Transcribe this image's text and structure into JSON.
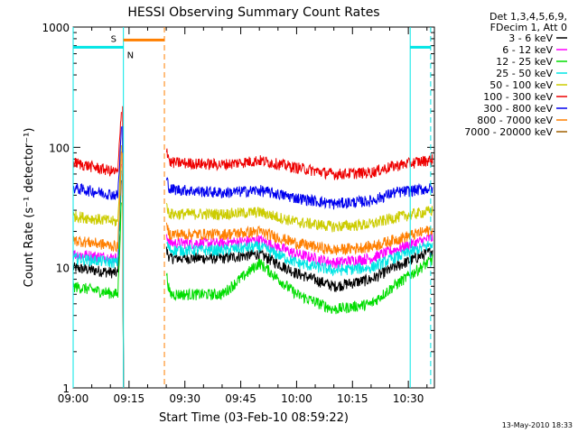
{
  "chart_data": {
    "type": "line",
    "title": "HESSI Observing Summary Count Rates",
    "xlabel": "Start Time (03-Feb-10 08:59:22)",
    "ylabel": "Count Rate (s⁻¹ detector⁻¹)",
    "y_scale": "log",
    "ylim": [
      1,
      1000
    ],
    "xlim": [
      "09:00",
      "10:37"
    ],
    "x_ticks": [
      "09:00",
      "09:15",
      "09:30",
      "09:45",
      "10:00",
      "10:15",
      "10:30"
    ],
    "y_ticks": [
      "1",
      "10",
      "100",
      "1000"
    ],
    "legend_header": [
      "Det 1,3,4,5,6,9,",
      "FDecim 1, Att 0"
    ],
    "legend_position": "right",
    "x_units": "minutes since 09:00",
    "time_x": [
      0,
      12,
      13,
      24,
      25,
      26,
      40,
      50,
      60,
      70,
      80,
      86,
      97
    ],
    "data_gaps": [
      [
        13.5,
        24.5
      ]
    ],
    "series": [
      {
        "name": "3 - 6 keV",
        "color": "#000000",
        "values": [
          10,
          9,
          60,
          null,
          14,
          12,
          12,
          13,
          9,
          7,
          8,
          10,
          14
        ]
      },
      {
        "name": "6 - 12 keV",
        "color": "#ff00ff",
        "values": [
          13,
          12,
          80,
          null,
          19,
          16,
          16,
          17,
          13,
          11,
          12,
          14,
          18
        ]
      },
      {
        "name": "12 - 25 keV",
        "color": "#00dd00",
        "values": [
          7,
          6,
          40,
          null,
          9,
          6,
          6,
          11,
          6,
          4.5,
          5,
          7,
          12
        ]
      },
      {
        "name": "25 - 50 keV",
        "color": "#00e5e5",
        "values": [
          12,
          11,
          70,
          null,
          16,
          14,
          14,
          15,
          11,
          9.5,
          10,
          12,
          16
        ]
      },
      {
        "name": "50 - 100 keV",
        "color": "#cccc00",
        "values": [
          27,
          24,
          120,
          null,
          32,
          28,
          28,
          29,
          24,
          22,
          23,
          26,
          30
        ]
      },
      {
        "name": "100 - 300 keV",
        "color": "#ee0000",
        "values": [
          75,
          62,
          220,
          null,
          100,
          75,
          72,
          78,
          68,
          60,
          62,
          70,
          80
        ]
      },
      {
        "name": "300 - 800 keV",
        "color": "#0000ee",
        "values": [
          46,
          40,
          150,
          null,
          55,
          45,
          42,
          44,
          38,
          34,
          36,
          42,
          46
        ]
      },
      {
        "name": "800 - 7000 keV",
        "color": "#ff7f00",
        "values": [
          17,
          15,
          90,
          null,
          22,
          19,
          19,
          20,
          16,
          14,
          15,
          17,
          21
        ]
      },
      {
        "name": "7000 - 20000 keV",
        "color": "#a06000",
        "values": []
      }
    ],
    "annotations": [
      {
        "label": "S",
        "color": "#ff7f00",
        "x_start": 13.5,
        "x_end": 24.5,
        "y": 780,
        "line": "dashed-ends"
      },
      {
        "label": "N",
        "color": "#00e5e5",
        "segments": [
          [
            0,
            13.5
          ],
          [
            90.5,
            96
          ]
        ],
        "y": 680
      }
    ],
    "vertical_markers": [
      {
        "x": 13.5,
        "color": "#00e5e5",
        "style": "solid"
      },
      {
        "x": 24.5,
        "color": "#ff7f00",
        "style": "dashed"
      },
      {
        "x": 90.5,
        "color": "#00e5e5",
        "style": "solid"
      },
      {
        "x": 96,
        "color": "#00e5e5",
        "style": "dashed"
      },
      {
        "x": 0,
        "color": "#00e5e5",
        "style": "solid"
      }
    ]
  },
  "footer": {
    "date": "13-May-2010 18:33"
  }
}
